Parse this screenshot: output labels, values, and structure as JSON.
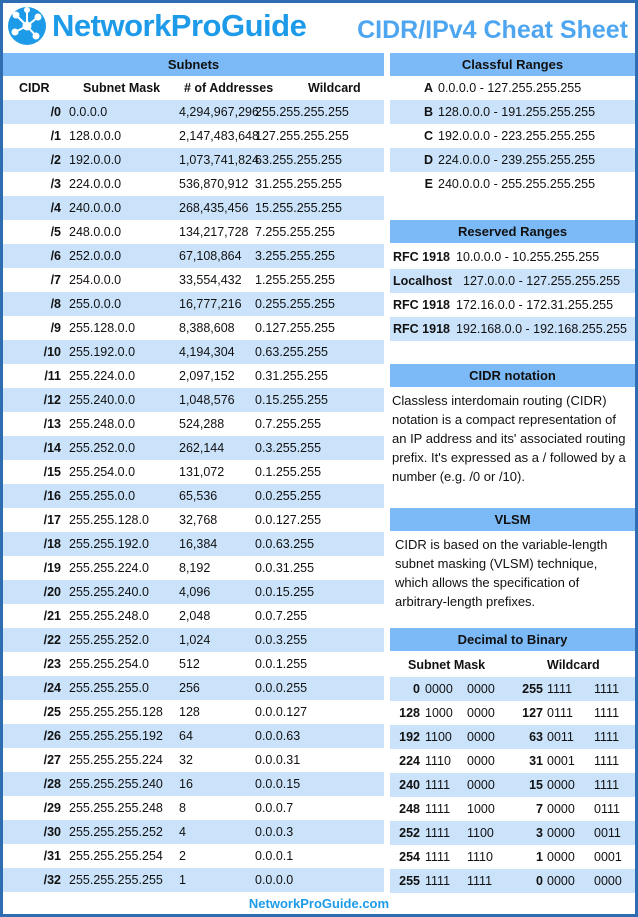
{
  "header": {
    "logo_text": "NetworkProGuide",
    "title": "CIDR/IPv4 Cheat Sheet"
  },
  "subnets": {
    "title": "Subnets",
    "columns": [
      "CIDR",
      "Subnet Mask",
      "# of Addresses",
      "Wildcard"
    ],
    "rows": [
      [
        "/0",
        "0.0.0.0",
        "4,294,967,296",
        "255.255.255.255"
      ],
      [
        "/1",
        "128.0.0.0",
        "2,147,483,648",
        "127.255.255.255"
      ],
      [
        "/2",
        "192.0.0.0",
        "1,073,741,824",
        "63.255.255.255"
      ],
      [
        "/3",
        "224.0.0.0",
        "536,870,912",
        "31.255.255.255"
      ],
      [
        "/4",
        "240.0.0.0",
        "268,435,456",
        "15.255.255.255"
      ],
      [
        "/5",
        "248.0.0.0",
        "134,217,728",
        "7.255.255.255"
      ],
      [
        "/6",
        "252.0.0.0",
        "67,108,864",
        "3.255.255.255"
      ],
      [
        "/7",
        "254.0.0.0",
        "33,554,432",
        "1.255.255.255"
      ],
      [
        "/8",
        "255.0.0.0",
        "16,777,216",
        "0.255.255.255"
      ],
      [
        "/9",
        "255.128.0.0",
        "8,388,608",
        "0.127.255.255"
      ],
      [
        "/10",
        "255.192.0.0",
        "4,194,304",
        "0.63.255.255"
      ],
      [
        "/11",
        "255.224.0.0",
        "2,097,152",
        "0.31.255.255"
      ],
      [
        "/12",
        "255.240.0.0",
        "1,048,576",
        "0.15.255.255"
      ],
      [
        "/13",
        "255.248.0.0",
        "524,288",
        "0.7.255.255"
      ],
      [
        "/14",
        "255.252.0.0",
        "262,144",
        "0.3.255.255"
      ],
      [
        "/15",
        "255.254.0.0",
        "131,072",
        "0.1.255.255"
      ],
      [
        "/16",
        "255.255.0.0",
        "65,536",
        "0.0.255.255"
      ],
      [
        "/17",
        "255.255.128.0",
        "32,768",
        "0.0.127.255"
      ],
      [
        "/18",
        "255.255.192.0",
        "16,384",
        "0.0.63.255"
      ],
      [
        "/19",
        "255.255.224.0",
        "8,192",
        "0.0.31.255"
      ],
      [
        "/20",
        "255.255.240.0",
        "4,096",
        "0.0.15.255"
      ],
      [
        "/21",
        "255.255.248.0",
        "2,048",
        "0.0.7.255"
      ],
      [
        "/22",
        "255.255.252.0",
        "1,024",
        "0.0.3.255"
      ],
      [
        "/23",
        "255.255.254.0",
        "512",
        "0.0.1.255"
      ],
      [
        "/24",
        "255.255.255.0",
        "256",
        "0.0.0.255"
      ],
      [
        "/25",
        "255.255.255.128",
        "128",
        "0.0.0.127"
      ],
      [
        "/26",
        "255.255.255.192",
        "64",
        "0.0.0.63"
      ],
      [
        "/27",
        "255.255.255.224",
        "32",
        "0.0.0.31"
      ],
      [
        "/28",
        "255.255.255.240",
        "16",
        "0.0.0.15"
      ],
      [
        "/29",
        "255.255.255.248",
        "8",
        "0.0.0.7"
      ],
      [
        "/30",
        "255.255.255.252",
        "4",
        "0.0.0.3"
      ],
      [
        "/31",
        "255.255.255.254",
        "2",
        "0.0.0.1"
      ],
      [
        "/32",
        "255.255.255.255",
        "1",
        "0.0.0.0"
      ]
    ]
  },
  "classful": {
    "title": "Classful Ranges",
    "rows": [
      [
        "A",
        "0.0.0.0 - 127.255.255.255"
      ],
      [
        "B",
        "128.0.0.0 - 191.255.255.255"
      ],
      [
        "C",
        "192.0.0.0 - 223.255.255.255"
      ],
      [
        "D",
        "224.0.0.0 - 239.255.255.255"
      ],
      [
        "E",
        "240.0.0.0 - 255.255.255.255"
      ]
    ]
  },
  "reserved": {
    "title": "Reserved Ranges",
    "rows": [
      [
        "RFC 1918",
        "10.0.0.0 - 10.255.255.255"
      ],
      [
        "Localhost",
        "127.0.0.0 - 127.255.255.255"
      ],
      [
        "RFC 1918",
        "172.16.0.0 - 172.31.255.255"
      ],
      [
        "RFC 1918",
        "192.168.0.0 - 192.168.255.255"
      ]
    ]
  },
  "cidr_notation": {
    "title": "CIDR notation",
    "text": "Classless interdomain routing (CIDR) notation is a compact representation of an IP address and its' associated routing prefix. It's expressed as a / followed by a number (e.g. /0 or /10)."
  },
  "vlsm": {
    "title": "VLSM",
    "text": "CIDR is based on the variable-length subnet masking (VLSM) technique, which allows the specification of arbitrary-length prefixes."
  },
  "binary": {
    "title": "Decimal to Binary",
    "columns": [
      "Subnet Mask",
      "Wildcard"
    ],
    "rows": [
      [
        "0",
        "0000",
        "0000",
        "255",
        "1111",
        "1111"
      ],
      [
        "128",
        "1000",
        "0000",
        "127",
        "0111",
        "1111"
      ],
      [
        "192",
        "1100",
        "0000",
        "63",
        "0011",
        "1111"
      ],
      [
        "224",
        "1110",
        "0000",
        "31",
        "0001",
        "1111"
      ],
      [
        "240",
        "1111",
        "0000",
        "15",
        "0000",
        "1111"
      ],
      [
        "248",
        "1111",
        "1000",
        "7",
        "0000",
        "0111"
      ],
      [
        "252",
        "1111",
        "1100",
        "3",
        "0000",
        "0011"
      ],
      [
        "254",
        "1111",
        "1110",
        "1",
        "0000",
        "0001"
      ],
      [
        "255",
        "1111",
        "1111",
        "0",
        "0000",
        "0000"
      ]
    ]
  },
  "footer": "NetworkProGuide.com",
  "colors": {
    "border": "#2f6db3",
    "header_bar": "#7bbaf7",
    "stripe": "#cbe3fa",
    "brand": "#1d9be9"
  }
}
